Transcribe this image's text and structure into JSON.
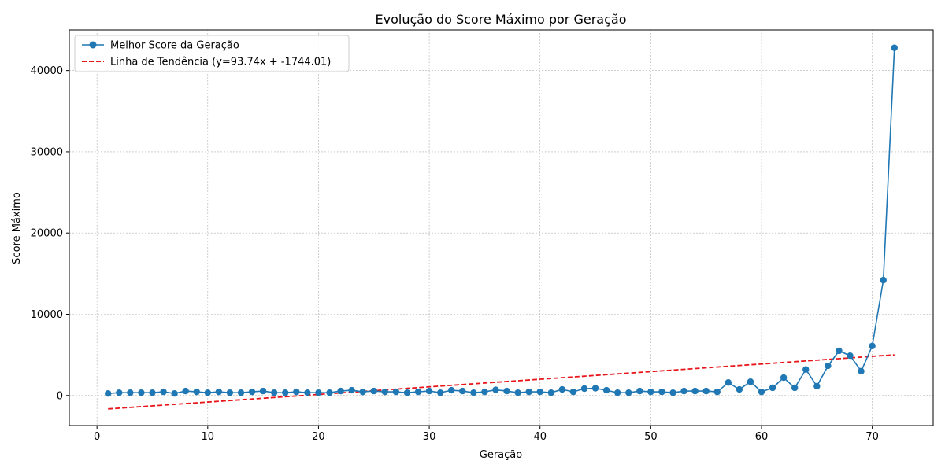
{
  "chart_data": {
    "type": "line",
    "title": "Evolução do Score Máximo por Geração",
    "xlabel": "Geração",
    "ylabel": "Score Máximo",
    "xlim": [
      -2.5,
      75.5
    ],
    "ylim": [
      -3700,
      45000
    ],
    "xticks": [
      0,
      10,
      20,
      30,
      40,
      50,
      60,
      70
    ],
    "yticks": [
      0,
      10000,
      20000,
      30000,
      40000
    ],
    "grid": true,
    "legend_position": "top-left",
    "series": [
      {
        "name": "Melhor Score da Geração",
        "style": "line-marker",
        "color": "#1f77b4",
        "x": [
          1,
          2,
          3,
          4,
          5,
          6,
          7,
          8,
          9,
          10,
          11,
          12,
          13,
          14,
          15,
          16,
          17,
          18,
          19,
          20,
          21,
          22,
          23,
          24,
          25,
          26,
          27,
          28,
          29,
          30,
          31,
          32,
          33,
          34,
          35,
          36,
          37,
          38,
          39,
          40,
          41,
          42,
          43,
          44,
          45,
          46,
          47,
          48,
          49,
          50,
          51,
          52,
          53,
          54,
          55,
          56,
          57,
          58,
          59,
          60,
          61,
          62,
          63,
          64,
          65,
          66,
          67,
          68,
          69,
          70,
          71,
          72
        ],
        "y": [
          250,
          350,
          350,
          350,
          350,
          450,
          250,
          550,
          450,
          350,
          450,
          350,
          350,
          450,
          550,
          350,
          350,
          450,
          350,
          350,
          350,
          550,
          650,
          450,
          550,
          450,
          450,
          350,
          450,
          550,
          350,
          650,
          550,
          350,
          450,
          700,
          550,
          350,
          450,
          450,
          350,
          750,
          450,
          850,
          900,
          650,
          350,
          350,
          550,
          450,
          450,
          350,
          550,
          550,
          550,
          450,
          1600,
          750,
          1700,
          450,
          950,
          2200,
          950,
          3200,
          1150,
          3650,
          5500,
          4900,
          3000,
          6100,
          14200,
          42800
        ]
      },
      {
        "name": "Linha de Tendência (y=93.74x + -1744.01)",
        "style": "dashed",
        "color": "#e8161b",
        "slope": 93.74,
        "intercept": -1744.01,
        "x_range": [
          1,
          72
        ]
      }
    ]
  }
}
